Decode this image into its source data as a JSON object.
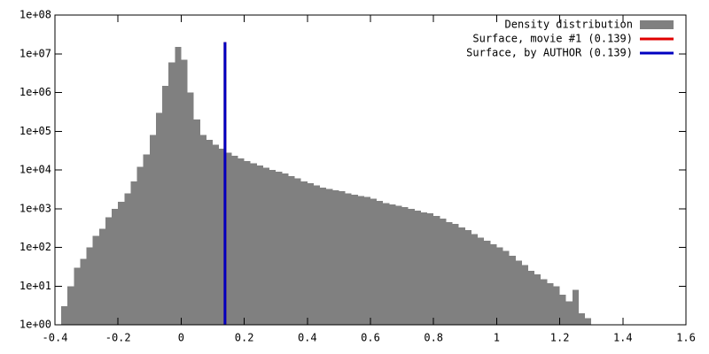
{
  "chart_data": {
    "type": "histogram",
    "ylog": true,
    "legend": "top-right",
    "grid": false,
    "xlim": [
      -0.4,
      1.6
    ],
    "ylim": [
      1,
      100000000
    ],
    "xticks": [
      -0.4,
      -0.2,
      0,
      0.2,
      0.4,
      0.6,
      0.8,
      1,
      1.2,
      1.4,
      1.6
    ],
    "yticks": [
      {
        "value": 1,
        "label": "1e+00"
      },
      {
        "value": 10,
        "label": "1e+01"
      },
      {
        "value": 100,
        "label": "1e+02"
      },
      {
        "value": 1000,
        "label": "1e+03"
      },
      {
        "value": 10000,
        "label": "1e+04"
      },
      {
        "value": 100000,
        "label": "1e+05"
      },
      {
        "value": 1000000,
        "label": "1e+06"
      },
      {
        "value": 10000000,
        "label": "1e+07"
      },
      {
        "value": 100000000,
        "label": "1e+08"
      }
    ],
    "series": [
      {
        "name": "Density distribution",
        "color": "#808080",
        "bins": [
          -0.38,
          -0.36,
          -0.34,
          -0.32,
          -0.3,
          -0.28,
          -0.26,
          -0.24,
          -0.22,
          -0.2,
          -0.18,
          -0.16,
          -0.14,
          -0.12,
          -0.1,
          -0.08,
          -0.06,
          -0.04,
          -0.02,
          0,
          0.02,
          0.04,
          0.06,
          0.08,
          0.1,
          0.12,
          0.14,
          0.16,
          0.18,
          0.2,
          0.22,
          0.24,
          0.26,
          0.28,
          0.3,
          0.32,
          0.34,
          0.36,
          0.38,
          0.4,
          0.42,
          0.44,
          0.46,
          0.48,
          0.5,
          0.52,
          0.54,
          0.56,
          0.58,
          0.6,
          0.62,
          0.64,
          0.66,
          0.68,
          0.7,
          0.72,
          0.74,
          0.76,
          0.78,
          0.8,
          0.82,
          0.84,
          0.86,
          0.88,
          0.9,
          0.92,
          0.94,
          0.96,
          0.98,
          1,
          1.02,
          1.04,
          1.06,
          1.08,
          1.1,
          1.12,
          1.14,
          1.16,
          1.18,
          1.2,
          1.22,
          1.24,
          1.26,
          1.28,
          1.3
        ],
        "values": [
          3,
          10,
          30,
          50,
          100,
          200,
          300,
          600,
          1000,
          1500,
          2500,
          5000,
          12000,
          25000,
          80000,
          300000,
          1500000,
          6000000,
          15000000,
          7000000,
          1000000,
          200000,
          80000,
          60000,
          45000,
          35000,
          28000,
          23000,
          20000,
          17000,
          15000,
          13000,
          11500,
          10000,
          9000,
          8000,
          7000,
          6000,
          5000,
          4500,
          4000,
          3500,
          3200,
          3000,
          2800,
          2500,
          2300,
          2100,
          2000,
          1800,
          1600,
          1400,
          1300,
          1200,
          1100,
          1000,
          900,
          800,
          750,
          650,
          550,
          450,
          400,
          330,
          280,
          220,
          180,
          150,
          120,
          100,
          80,
          60,
          45,
          35,
          25,
          20,
          15,
          12,
          10,
          6,
          4,
          8,
          2,
          1.5
        ]
      }
    ],
    "lines": [
      {
        "name": "Surface, movie #1 (0.139)",
        "color": "#e00000",
        "x": 0.139,
        "y": [
          1,
          20000000
        ]
      },
      {
        "name": "Surface, by AUTHOR (0.139)",
        "color": "#0000c0",
        "x": 0.139,
        "y": [
          1,
          20000000
        ]
      }
    ]
  }
}
